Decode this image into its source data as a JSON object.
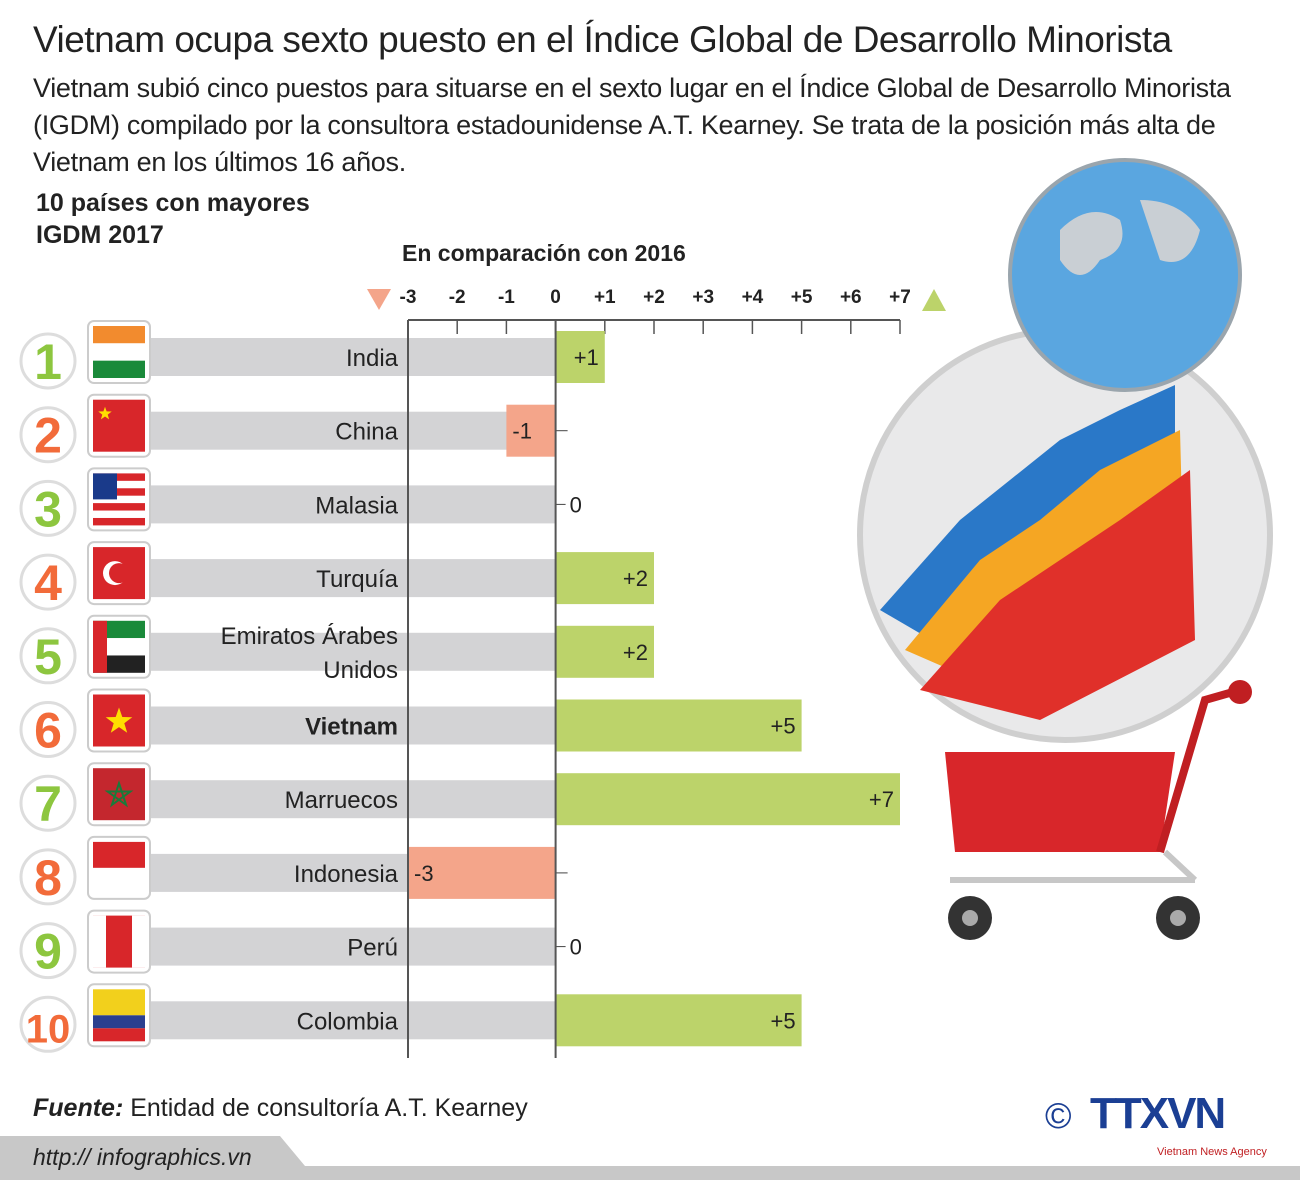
{
  "title": "Vietnam ocupa sexto puesto en el Índice Global de Desarrollo Minorista",
  "subtitle": "Vietnam subió cinco puestos para situarse en el sexto lugar en el Índice Global de Desarrollo Minorista (IGDM) compilado por la consultora estadounidense A.T. Kearney. Se trata de la posición más alta de Vietnam en los últimos 16 años.",
  "section_title_line1": "10 países con mayores",
  "section_title_line2": "IGDM 2017",
  "comparison_label": "En comparación con 2016",
  "source_label": "Fuente:",
  "source_text": " Entidad de consultoría A.T. Kearney",
  "url": "http:// infographics.vn",
  "logo_text": "TTXVN",
  "logo_sub": "Vietnam News Agency",
  "copyright": "©",
  "colors": {
    "positive": "#bcd36a",
    "negative": "#f4a58a",
    "row_bg": "#d3d3d5",
    "rank_green": "#8dc63f",
    "rank_orange": "#f26b3a",
    "logo_blue": "#1b3f94"
  },
  "chart_data": {
    "type": "bar",
    "orientation": "horizontal",
    "xlim": [
      -3,
      7
    ],
    "ticks": [
      "-3",
      "-2",
      "-1",
      "0",
      "+1",
      "+2",
      "+3",
      "+4",
      "+5",
      "+6",
      "+7"
    ],
    "tick_values": [
      -3,
      -2,
      -1,
      0,
      1,
      2,
      3,
      4,
      5,
      6,
      7
    ],
    "ranks": [
      "1",
      "2",
      "3",
      "4",
      "5",
      "6",
      "7",
      "8",
      "9",
      "10"
    ],
    "categories": [
      "India",
      "China",
      "Malasia",
      "Turquía",
      "Emiratos Árabes Unidos",
      "Vietnam",
      "Marruecos",
      "Indonesia",
      "Perú",
      "Colombia"
    ],
    "values": [
      1,
      -1,
      0,
      2,
      2,
      5,
      7,
      -3,
      0,
      5
    ],
    "labels": [
      "+1",
      "-1",
      "0",
      "+2",
      "+2",
      "+5",
      "+7",
      "-3",
      "0",
      "+5"
    ],
    "highlight": "Vietnam"
  }
}
